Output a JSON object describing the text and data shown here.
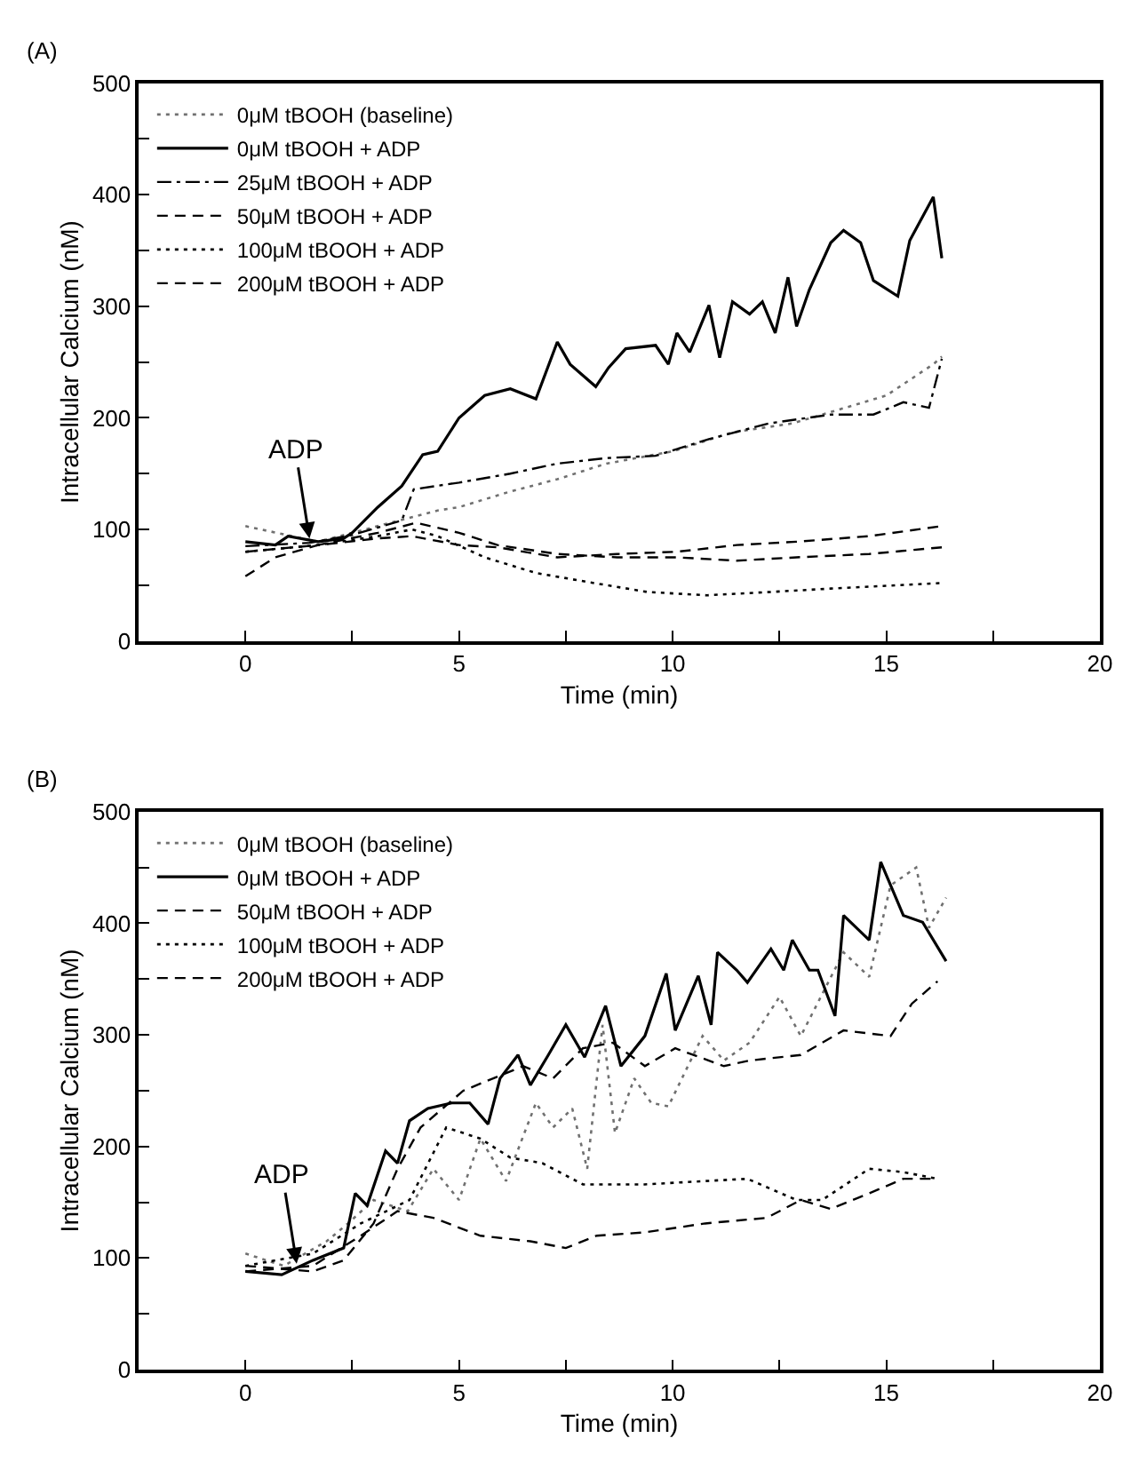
{
  "chart_data": [
    {
      "type": "line",
      "title": "(A)",
      "xlabel": "Time (min)",
      "ylabel": "Intracellular Calcium (nM)",
      "xlim": [
        -2.5,
        20
      ],
      "ylim": [
        0,
        500
      ],
      "xticks": [
        0,
        {
          "value": 2.5,
          "label": null
        },
        5,
        {
          "value": 7.5,
          "label": null
        },
        10,
        {
          "value": 12.5,
          "label": null
        },
        15,
        {
          "value": 17.5,
          "label": null
        },
        20
      ],
      "yticks": [
        0,
        {
          "value": 50,
          "label": null
        },
        100,
        {
          "value": 150,
          "label": null
        },
        200,
        {
          "value": 250,
          "label": null
        },
        300,
        {
          "value": 350,
          "label": null
        },
        400,
        {
          "value": 450,
          "label": null
        },
        500
      ],
      "legend": "top left",
      "annotations": [
        {
          "text": "ADP",
          "x": 1.5,
          "y": 92
        }
      ],
      "series": [
        {
          "name": "0μM tBOOH (baseline)",
          "color": "#707070",
          "line_style": "dotted",
          "x": [
            0,
            1.7,
            3.1,
            4.5,
            5,
            6.2,
            7.3,
            8.45,
            10,
            11.4,
            12.8,
            15,
            16.1,
            16.3
          ],
          "values": [
            103,
            89,
            103,
            117,
            120,
            134,
            145,
            159,
            170,
            187,
            195,
            220,
            248,
            255
          ]
        },
        {
          "name": "0μM tBOOH + ADP",
          "color": "#000000",
          "line_style": "solid",
          "x": [
            0,
            0.7,
            1.0,
            1.7,
            2.3,
            2.5,
            3.1,
            3.66,
            4.15,
            4.5,
            5,
            5.6,
            6.2,
            6.8,
            7.3,
            7.6,
            8.2,
            8.5,
            8.9,
            9.6,
            9.9,
            10.1,
            10.4,
            10.85,
            11.1,
            11.4,
            11.8,
            12.1,
            12.4,
            12.7,
            12.9,
            13.2,
            13.7,
            14.0,
            14.4,
            14.7,
            15.27,
            15.55,
            16.1,
            16.3
          ],
          "values": [
            89,
            86,
            94,
            89,
            92,
            97,
            120,
            139,
            167,
            170,
            200,
            220,
            226,
            217,
            268,
            248,
            228,
            245,
            262,
            265,
            248,
            276,
            259,
            301,
            254,
            304,
            293,
            304,
            276,
            326,
            282,
            315,
            357,
            368,
            357,
            323,
            309,
            359,
            398,
            343
          ]
        },
        {
          "name": "25μM tBOOH + ADP",
          "color": "#000000",
          "line_style": "dashdot",
          "x": [
            0,
            1.5,
            2.5,
            3.66,
            3.94,
            5,
            6.2,
            7.3,
            8.45,
            9.6,
            10.85,
            12.25,
            13.7,
            14.7,
            15.4,
            16.0,
            16.3
          ],
          "values": [
            85,
            88,
            95,
            108,
            136,
            142,
            150,
            159,
            164,
            166,
            181,
            195,
            203,
            203,
            214,
            209,
            253
          ]
        },
        {
          "name": "50μM tBOOH + ADP",
          "color": "#000000",
          "line_style": "dashed",
          "x": [
            0,
            1.7,
            3.1,
            4.0,
            5,
            5.9,
            7.3,
            8.7,
            10.1,
            11.5,
            12.9,
            14.6,
            16.3
          ],
          "values": [
            80,
            86,
            97,
            106,
            97,
            86,
            78,
            75,
            75,
            72,
            75,
            78,
            84
          ]
        },
        {
          "name": "100μM tBOOH + ADP",
          "color": "#000000",
          "line_style": "dotted",
          "x": [
            0,
            1.7,
            3.1,
            3.9,
            4.5,
            5.6,
            6.8,
            8.0,
            9.4,
            10.8,
            12.3,
            13.7,
            16.3
          ],
          "values": [
            80,
            86,
            94,
            100,
            94,
            75,
            61,
            53,
            44,
            41,
            44,
            47,
            52
          ]
        },
        {
          "name": "200μM tBOOH + ADP",
          "color": "#000000",
          "line_style": "dashed",
          "x": [
            0,
            0.7,
            1.7,
            3.1,
            3.9,
            5,
            5.9,
            7.3,
            8.7,
            10.1,
            11.5,
            12.9,
            14.6,
            16.3
          ],
          "values": [
            58,
            75,
            86,
            92,
            94,
            86,
            84,
            75,
            78,
            80,
            86,
            89,
            94,
            103
          ]
        }
      ]
    },
    {
      "type": "line",
      "title": "(B)",
      "xlabel": "Time (min)",
      "ylabel": "Intracellular Calcium (nM)",
      "xlim": [
        -2.5,
        20
      ],
      "ylim": [
        0,
        500
      ],
      "xticks": [
        0,
        {
          "value": 2.5,
          "label": null
        },
        5,
        {
          "value": 7.5,
          "label": null
        },
        10,
        {
          "value": 12.5,
          "label": null
        },
        15,
        {
          "value": 17.5,
          "label": null
        },
        20
      ],
      "yticks": [
        0,
        {
          "value": 50,
          "label": null
        },
        100,
        {
          "value": 150,
          "label": null
        },
        200,
        {
          "value": 250,
          "label": null
        },
        300,
        {
          "value": 350,
          "label": null
        },
        400,
        {
          "value": 450,
          "label": null
        },
        500
      ],
      "legend": "top left",
      "annotations": [
        {
          "text": "ADP",
          "x": 1.2,
          "y": 95
        }
      ],
      "series": [
        {
          "name": "0μM tBOOH (baseline)",
          "color": "#707070",
          "line_style": "dotted",
          "x": [
            0,
            0.9,
            1.9,
            2.4,
            3.0,
            3.8,
            4.4,
            5.0,
            5.5,
            6.1,
            6.8,
            7.2,
            7.65,
            8.0,
            8.36,
            8.65,
            9.1,
            9.5,
            9.9,
            10.7,
            11.2,
            11.8,
            12.5,
            13.0,
            14.0,
            14.6,
            15.1,
            15.7,
            16.0,
            16.4
          ],
          "values": [
            104,
            93,
            115,
            131,
            152,
            142,
            180,
            152,
            207,
            169,
            239,
            217,
            234,
            180,
            309,
            212,
            261,
            239,
            236,
            299,
            277,
            293,
            334,
            299,
            374,
            352,
            434,
            450,
            396,
            423
          ]
        },
        {
          "name": "0μM tBOOH + ADP",
          "color": "#000000",
          "line_style": "solid",
          "x": [
            0,
            0.85,
            1.58,
            2.3,
            2.57,
            2.85,
            3.28,
            3.56,
            3.84,
            4.27,
            4.83,
            5.25,
            5.68,
            5.96,
            6.38,
            6.67,
            7.09,
            7.5,
            7.94,
            8.43,
            8.79,
            9.35,
            9.85,
            10.06,
            10.6,
            10.9,
            11.05,
            11.5,
            11.75,
            12.3,
            12.6,
            12.8,
            13.2,
            13.4,
            13.8,
            14.0,
            14.6,
            14.87,
            15.4,
            15.85,
            16.4
          ],
          "values": [
            88,
            85,
            98,
            109,
            158,
            147,
            196,
            185,
            223,
            234,
            239,
            239,
            220,
            261,
            282,
            255,
            282,
            309,
            280,
            326,
            272,
            299,
            355,
            304,
            353,
            309,
            374,
            358,
            347,
            377,
            358,
            385,
            358,
            358,
            317,
            407,
            385,
            455,
            407,
            401,
            366
          ]
        },
        {
          "name": "50μM tBOOH + ADP",
          "color": "#000000",
          "line_style": "dashed",
          "x": [
            0,
            1.58,
            2.3,
            3.0,
            3.56,
            4.1,
            5.1,
            5.8,
            6.5,
            7.2,
            7.9,
            8.6,
            9.35,
            10.06,
            11.2,
            11.8,
            13.0,
            14.0,
            15.1,
            15.6,
            16.2
          ],
          "values": [
            93,
            88,
            98,
            131,
            180,
            217,
            250,
            261,
            272,
            261,
            288,
            293,
            272,
            288,
            272,
            277,
            282,
            304,
            299,
            328,
            348
          ]
        },
        {
          "name": "100μM tBOOH + ADP",
          "color": "#000000",
          "line_style": "dotted",
          "x": [
            0,
            1.58,
            2.7,
            3.84,
            4.7,
            5.5,
            6.2,
            6.95,
            7.9,
            9.35,
            10.76,
            11.75,
            12.9,
            13.5,
            14.6,
            15.4,
            16.2
          ],
          "values": [
            93,
            104,
            131,
            152,
            217,
            207,
            190,
            185,
            166,
            166,
            169,
            171,
            152,
            152,
            180,
            177,
            171
          ]
        },
        {
          "name": "200μM tBOOH + ADP",
          "color": "#000000",
          "line_style": "dashed",
          "x": [
            0,
            1.58,
            2.7,
            3.56,
            4.4,
            5.5,
            6.67,
            7.5,
            8.22,
            9.35,
            10.76,
            12.2,
            13.0,
            13.7,
            14.6,
            15.4,
            16.2
          ],
          "values": [
            88,
            93,
            120,
            142,
            136,
            120,
            115,
            109,
            120,
            123,
            131,
            136,
            152,
            144,
            158,
            171,
            171
          ]
        }
      ]
    }
  ]
}
